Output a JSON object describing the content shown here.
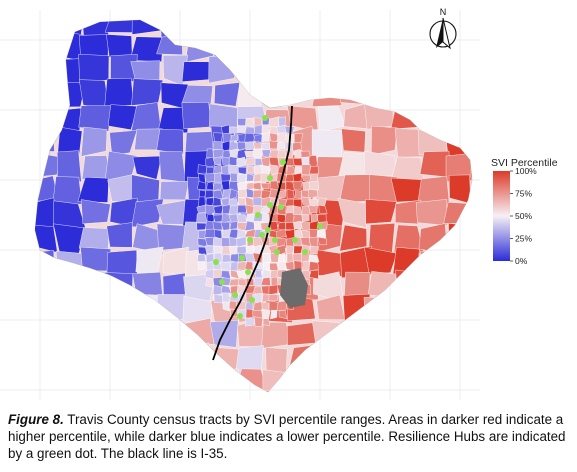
{
  "legend": {
    "title": "SVI Percentile",
    "ticks": [
      {
        "label": "100%",
        "value": 1.0
      },
      {
        "label": "75%",
        "value": 0.75
      },
      {
        "label": "50%",
        "value": 0.5
      },
      {
        "label": "25%",
        "value": 0.25
      },
      {
        "label": "0%",
        "value": 0.0
      }
    ],
    "color_high": "#dd3b2a",
    "color_mid": "#f6f0f4",
    "color_low": "#2c2cd8"
  },
  "north_arrow": {
    "letter": "N"
  },
  "caption": {
    "label": "Figure 8.",
    "text": " Travis County census tracts by SVI percentile ranges. Areas in darker red indicate a higher percentile, while darker blue indicates a lower percentile. Resilience Hubs are indicated by a green dot. The black line is I-35."
  },
  "map_colors": {
    "hub_dot": "#8be04e",
    "i35_line": "#000000",
    "no_data_tract": "#6b6b6b",
    "grid": "#ececec",
    "tract_border": "#ffffff"
  }
}
